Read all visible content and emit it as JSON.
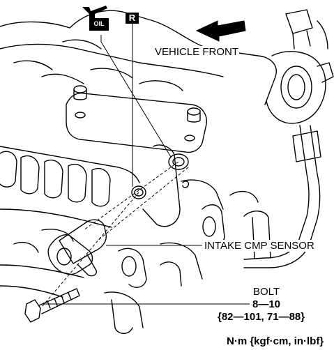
{
  "labels": {
    "vehicle_front": "VEHICLE FRONT",
    "intake_cmp_sensor": "INTAKE CMP SENSOR",
    "bolt": "BOLT",
    "torque_nm": "8—10",
    "torque_alt": "{82—101, 71—88}",
    "units": "N·m {kgf·cm, in·lbf}"
  },
  "badges": {
    "replace": "R",
    "oil": "OIL"
  },
  "colors": {
    "line": "#000000",
    "background": "#ffffff"
  }
}
